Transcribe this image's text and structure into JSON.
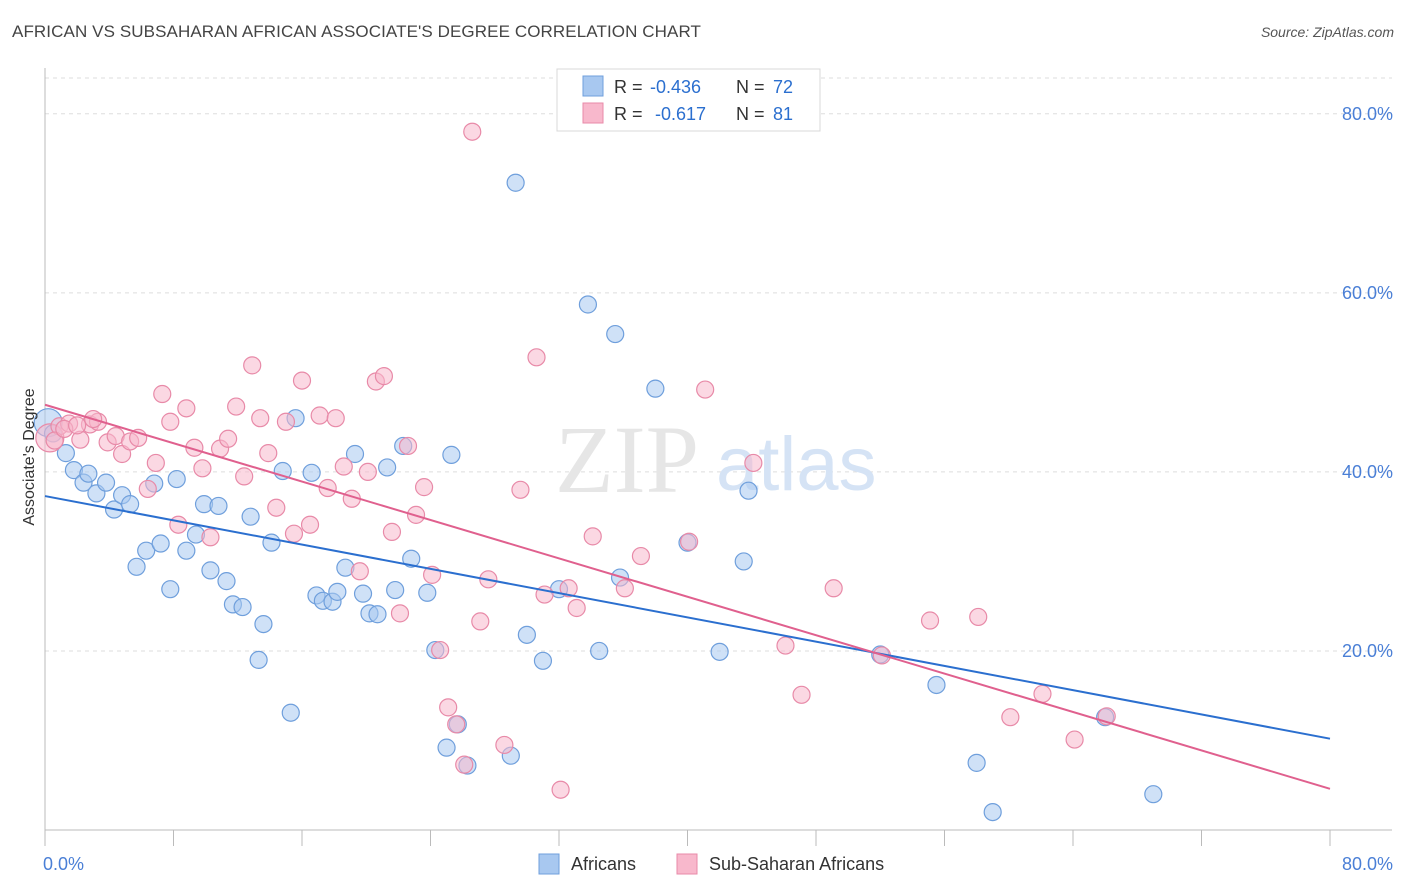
{
  "header": {
    "title": "AFRICAN VS SUBSAHARAN AFRICAN ASSOCIATE'S DEGREE CORRELATION CHART",
    "source": "Source: ZipAtlas.com"
  },
  "watermark": {
    "zip": "ZIP",
    "atlas": "atlas"
  },
  "legend_stats": [
    {
      "r_label": "R =",
      "r_value": "-0.436",
      "n_label": "N =",
      "n_value": "72"
    },
    {
      "r_label": "R =",
      "r_value": "-0.617",
      "n_label": "N =",
      "n_value": "81"
    }
  ],
  "colors": {
    "africans_fill": "#a8c8f0",
    "africans_stroke": "#6f9fdc",
    "africans_line": "#2b6fcf",
    "subsaharan_fill": "#f8b8cc",
    "subsaharan_stroke": "#e88aa8",
    "subsaharan_line": "#e0608e",
    "tick_text": "#4a7fd6",
    "grid": "#dddddd"
  },
  "chart_data": {
    "type": "scatter",
    "title": "AFRICAN VS SUBSAHARAN AFRICAN ASSOCIATE'S DEGREE CORRELATION CHART",
    "xlabel": "",
    "ylabel": "Associate's Degree",
    "xlim": [
      0,
      80
    ],
    "ylim": [
      0,
      84
    ],
    "x_tick_labels": [
      "0.0%",
      "80.0%"
    ],
    "y_ticks": [
      20,
      40,
      60,
      80
    ],
    "y_tick_labels": [
      "20.0%",
      "40.0%",
      "60.0%",
      "80.0%"
    ],
    "grid": true,
    "legend_position": "bottom-center",
    "series": [
      {
        "name": "Africans",
        "r": -0.436,
        "n": 72,
        "trend": {
          "x": [
            0,
            80
          ],
          "y": [
            37.3,
            10.2
          ]
        },
        "points": [
          [
            0.2,
            45.5
          ],
          [
            0.5,
            44.3
          ],
          [
            1.3,
            42.1
          ],
          [
            1.8,
            40.2
          ],
          [
            2.4,
            38.8
          ],
          [
            2.7,
            39.8
          ],
          [
            3.2,
            37.6
          ],
          [
            3.8,
            38.8
          ],
          [
            4.3,
            35.8
          ],
          [
            4.8,
            37.4
          ],
          [
            5.3,
            36.4
          ],
          [
            5.7,
            29.4
          ],
          [
            6.3,
            31.2
          ],
          [
            6.8,
            38.7
          ],
          [
            7.2,
            32.0
          ],
          [
            7.8,
            26.9
          ],
          [
            8.2,
            39.2
          ],
          [
            8.8,
            31.2
          ],
          [
            9.4,
            33.0
          ],
          [
            9.9,
            36.4
          ],
          [
            10.3,
            29.0
          ],
          [
            10.8,
            36.2
          ],
          [
            11.3,
            27.8
          ],
          [
            11.7,
            25.2
          ],
          [
            12.3,
            24.9
          ],
          [
            12.8,
            35.0
          ],
          [
            13.3,
            19.0
          ],
          [
            13.6,
            23.0
          ],
          [
            14.1,
            32.1
          ],
          [
            14.8,
            40.1
          ],
          [
            15.3,
            13.1
          ],
          [
            15.6,
            46.0
          ],
          [
            16.6,
            39.9
          ],
          [
            16.9,
            26.2
          ],
          [
            17.3,
            25.6
          ],
          [
            17.9,
            25.5
          ],
          [
            18.2,
            26.6
          ],
          [
            18.7,
            29.3
          ],
          [
            19.3,
            42.0
          ],
          [
            19.8,
            26.4
          ],
          [
            20.2,
            24.2
          ],
          [
            20.7,
            24.1
          ],
          [
            21.3,
            40.5
          ],
          [
            21.8,
            26.8
          ],
          [
            22.3,
            42.9
          ],
          [
            22.8,
            30.3
          ],
          [
            23.8,
            26.5
          ],
          [
            24.3,
            20.1
          ],
          [
            25.0,
            9.2
          ],
          [
            25.3,
            41.9
          ],
          [
            25.7,
            11.8
          ],
          [
            26.3,
            7.2
          ],
          [
            29.0,
            8.3
          ],
          [
            29.3,
            72.3
          ],
          [
            30.0,
            21.8
          ],
          [
            31.0,
            18.9
          ],
          [
            32.0,
            26.9
          ],
          [
            33.8,
            58.7
          ],
          [
            34.5,
            20.0
          ],
          [
            35.5,
            55.4
          ],
          [
            35.8,
            28.2
          ],
          [
            38.0,
            49.3
          ],
          [
            40.0,
            32.1
          ],
          [
            42.0,
            19.9
          ],
          [
            43.5,
            30.0
          ],
          [
            43.8,
            37.9
          ],
          [
            52.0,
            19.6
          ],
          [
            55.5,
            16.2
          ],
          [
            58.0,
            7.5
          ],
          [
            59.0,
            2.0
          ],
          [
            66.0,
            12.6
          ],
          [
            69.0,
            4.0
          ]
        ]
      },
      {
        "name": "Sub-Saharan Africans",
        "r": -0.617,
        "n": 81,
        "trend": {
          "x": [
            0,
            80
          ],
          "y": [
            47.5,
            4.6
          ]
        },
        "points": [
          [
            0.3,
            43.8
          ],
          [
            0.9,
            45.1
          ],
          [
            1.5,
            45.4
          ],
          [
            2.2,
            43.6
          ],
          [
            2.8,
            45.3
          ],
          [
            3.3,
            45.6
          ],
          [
            3.9,
            43.3
          ],
          [
            4.4,
            44.0
          ],
          [
            4.8,
            42.0
          ],
          [
            5.3,
            43.4
          ],
          [
            5.8,
            43.8
          ],
          [
            6.4,
            38.1
          ],
          [
            6.9,
            41.0
          ],
          [
            7.3,
            48.7
          ],
          [
            7.8,
            45.6
          ],
          [
            8.3,
            34.1
          ],
          [
            8.8,
            47.1
          ],
          [
            9.3,
            42.7
          ],
          [
            9.8,
            40.4
          ],
          [
            10.3,
            32.7
          ],
          [
            10.9,
            42.6
          ],
          [
            11.4,
            43.7
          ],
          [
            11.9,
            47.3
          ],
          [
            12.4,
            39.5
          ],
          [
            12.9,
            51.9
          ],
          [
            13.4,
            46.0
          ],
          [
            13.9,
            42.1
          ],
          [
            14.4,
            36.0
          ],
          [
            15.0,
            45.6
          ],
          [
            15.5,
            33.1
          ],
          [
            16.0,
            50.2
          ],
          [
            16.5,
            34.1
          ],
          [
            17.1,
            46.3
          ],
          [
            17.6,
            38.2
          ],
          [
            18.1,
            46.0
          ],
          [
            18.6,
            40.6
          ],
          [
            19.1,
            37.0
          ],
          [
            19.6,
            28.9
          ],
          [
            20.1,
            40.0
          ],
          [
            20.6,
            50.1
          ],
          [
            21.1,
            50.7
          ],
          [
            21.6,
            33.3
          ],
          [
            22.1,
            24.2
          ],
          [
            22.6,
            42.9
          ],
          [
            23.1,
            35.2
          ],
          [
            23.6,
            38.3
          ],
          [
            24.1,
            28.5
          ],
          [
            24.6,
            20.1
          ],
          [
            25.1,
            13.7
          ],
          [
            25.6,
            11.8
          ],
          [
            26.1,
            7.3
          ],
          [
            26.6,
            78.0
          ],
          [
            27.1,
            23.3
          ],
          [
            27.6,
            28.0
          ],
          [
            28.6,
            9.5
          ],
          [
            29.6,
            38.0
          ],
          [
            30.6,
            52.8
          ],
          [
            31.1,
            26.3
          ],
          [
            32.1,
            4.5
          ],
          [
            32.6,
            27.0
          ],
          [
            33.1,
            24.8
          ],
          [
            34.1,
            32.8
          ],
          [
            36.1,
            27.0
          ],
          [
            37.1,
            30.6
          ],
          [
            40.1,
            32.2
          ],
          [
            41.1,
            49.2
          ],
          [
            44.1,
            41.0
          ],
          [
            46.1,
            20.6
          ],
          [
            47.1,
            15.1
          ],
          [
            49.1,
            27.0
          ],
          [
            52.1,
            19.5
          ],
          [
            55.1,
            23.4
          ],
          [
            58.1,
            23.8
          ],
          [
            60.1,
            12.6
          ],
          [
            62.1,
            15.2
          ],
          [
            64.1,
            10.1
          ],
          [
            66.1,
            12.7
          ],
          [
            0.6,
            43.5
          ],
          [
            1.2,
            44.8
          ],
          [
            2.0,
            45.2
          ],
          [
            3.0,
            45.9
          ]
        ]
      }
    ]
  },
  "legend": {
    "items": [
      "Africans",
      "Sub-Saharan Africans"
    ]
  }
}
